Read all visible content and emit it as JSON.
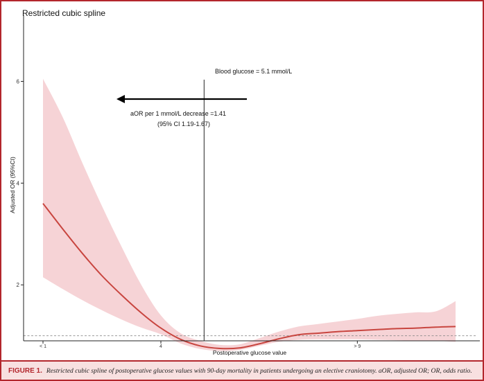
{
  "chart_data": {
    "type": "line",
    "title": "Restricted cubic spline",
    "xlabel": "Postoperative glucose value",
    "ylabel": "Adjusted OR (95%CI)",
    "x_tick_labels": [
      "< 1",
      "4",
      "> 9"
    ],
    "y_ticks": [
      2,
      4,
      6
    ],
    "ylim": [
      0.9,
      7.3
    ],
    "reference_line_y": 1,
    "vline_label": "Blood glucose = 5.1 mmol/L",
    "vline_x": 5.1,
    "annotation_line1": "aOR per 1 mmol/L decrease =1.41",
    "annotation_line2": "(95% CI 1.19-1.67)",
    "series": [
      {
        "x": [
          1,
          1.5,
          2,
          2.5,
          3,
          3.5,
          4,
          4.5,
          5,
          5.5,
          6,
          6.5,
          7,
          7.5,
          8,
          8.5,
          9,
          9.5,
          10,
          10.5,
          11,
          11.5
        ],
        "y": [
          3.6,
          3.1,
          2.62,
          2.18,
          1.8,
          1.45,
          1.15,
          0.93,
          0.8,
          0.75,
          0.76,
          0.84,
          0.94,
          1.02,
          1.05,
          1.08,
          1.1,
          1.12,
          1.14,
          1.15,
          1.17,
          1.18
        ],
        "lower": [
          2.15,
          1.92,
          1.7,
          1.5,
          1.32,
          1.16,
          1.03,
          0.85,
          0.74,
          0.7,
          0.72,
          0.8,
          0.88,
          0.92,
          0.93,
          0.93,
          0.93,
          0.92,
          0.91,
          0.9,
          0.9,
          0.88
        ],
        "upper": [
          6.05,
          5.3,
          4.4,
          3.55,
          2.75,
          2.0,
          1.4,
          1.05,
          0.9,
          0.82,
          0.83,
          0.95,
          1.08,
          1.18,
          1.23,
          1.28,
          1.33,
          1.39,
          1.43,
          1.46,
          1.48,
          1.68
        ]
      }
    ],
    "colors": {
      "line": "#c8453f",
      "band": "#f6d3d6",
      "axis": "#222222",
      "reference": "#8a8a8a"
    }
  },
  "caption": {
    "label": "FIGURE 1.",
    "text": "Restricted cubic spline of postoperative glucose values with 90-day mortality in patients undergoing an elective craniotomy. aOR, adjusted OR; OR, odds ratio."
  }
}
